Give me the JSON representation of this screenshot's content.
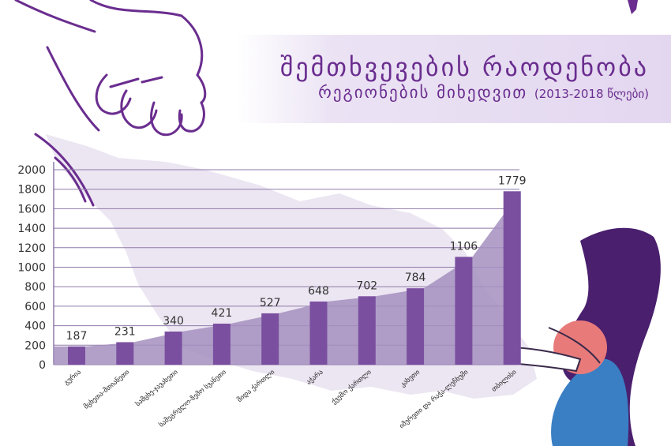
{
  "title": {
    "line1": "შემთხვევების რაოდენობა",
    "line2": "რეგიონების მიხედვით",
    "years": "(2013-2018 წლები)"
  },
  "colors": {
    "bar": "#7b4fa0",
    "area": "#a58fc0",
    "grid": "#8f7aa8",
    "title": "#6a2d8f",
    "map": "#ece6f2"
  },
  "chart_data": {
    "type": "bar",
    "categories": [
      "გურია",
      "მცხეთა-მთიანეთი",
      "სამცხე-ჯავახეთი",
      "სამეგრელო-ზემო სვანეთი",
      "შიდა ქართლი",
      "აჭარა",
      "ქვემო ქართლი",
      "კახეთი",
      "იმერეთი და რაჭა-ლეჩხუმი",
      "თბილისი"
    ],
    "values": [
      187,
      231,
      340,
      421,
      527,
      648,
      702,
      784,
      1106,
      1779
    ],
    "ylim": [
      0,
      2000
    ],
    "yticks": [
      0,
      200,
      400,
      600,
      800,
      1000,
      1200,
      1400,
      1600,
      1800,
      2000
    ],
    "grid": true,
    "data_labels": true
  }
}
